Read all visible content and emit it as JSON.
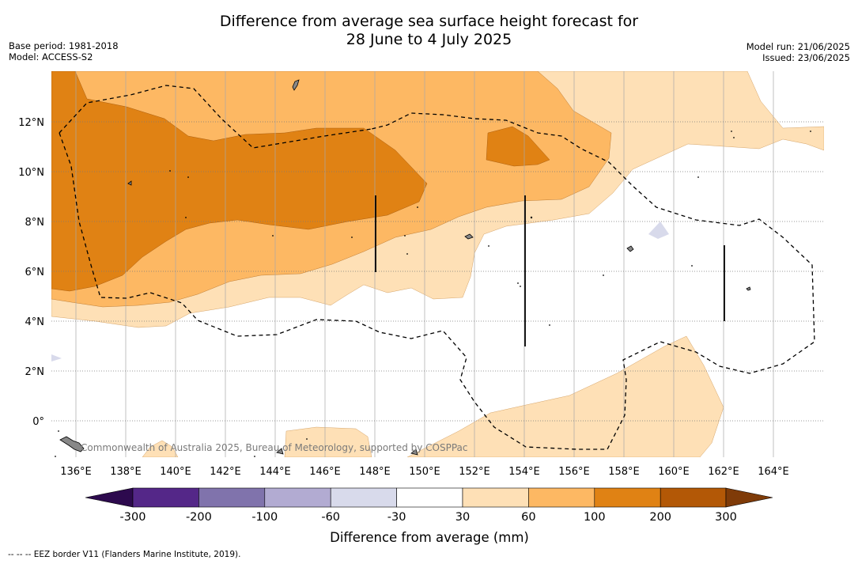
{
  "header": {
    "title_line1": "Difference from average sea surface height forecast for",
    "title_line2": "28 June to 4 July 2025",
    "base_period": "Base period: 1981-2018",
    "model": "Model: ACCESS-S2",
    "model_run": "Model run: 21/06/2025",
    "issued": "Issued: 23/06/2025"
  },
  "map": {
    "attribution": "Commonwealth of Australia 2025, Bureau of Meteorology, supported by COSPPac",
    "lon_labels": [
      "136°E",
      "138°E",
      "140°E",
      "142°E",
      "144°E",
      "146°E",
      "148°E",
      "150°E",
      "152°E",
      "154°E",
      "156°E",
      "158°E",
      "160°E",
      "162°E",
      "164°E"
    ],
    "lat_labels": [
      "12°N",
      "10°N",
      "8°N",
      "6°N",
      "4°N",
      "2°N",
      "0°"
    ]
  },
  "colorbar": {
    "ticks": [
      "-300",
      "-200",
      "-100",
      "-60",
      "-30",
      "30",
      "60",
      "100",
      "200",
      "300"
    ],
    "label": "Difference from average (mm)",
    "colors": {
      "under": "#2d0a4e",
      "c1": "#542788",
      "c2": "#8073ac",
      "c3": "#b2abd2",
      "c4": "#d8daeb",
      "c5": "#ffffff",
      "c6": "#fee0b6",
      "c7": "#fdb863",
      "c8": "#e08214",
      "c9": "#b35806",
      "over": "#7f3b08"
    }
  },
  "footnote": "--  --  -- EEZ border V11 (Flanders Marine Institute, 2019)."
}
